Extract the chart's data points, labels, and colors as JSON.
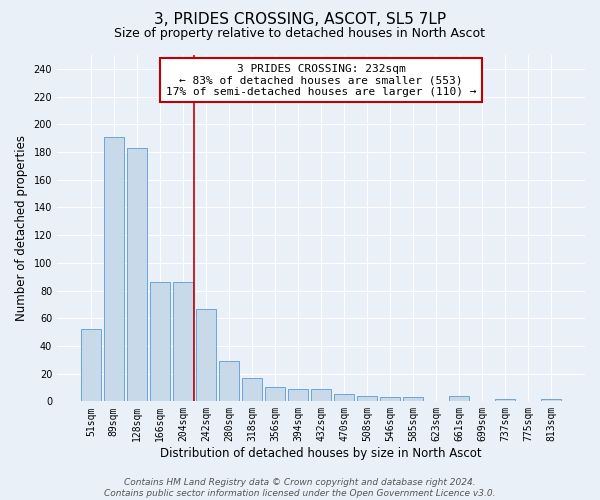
{
  "title": "3, PRIDES CROSSING, ASCOT, SL5 7LP",
  "subtitle": "Size of property relative to detached houses in North Ascot",
  "xlabel": "Distribution of detached houses by size in North Ascot",
  "ylabel": "Number of detached properties",
  "categories": [
    "51sqm",
    "89sqm",
    "128sqm",
    "166sqm",
    "204sqm",
    "242sqm",
    "280sqm",
    "318sqm",
    "356sqm",
    "394sqm",
    "432sqm",
    "470sqm",
    "508sqm",
    "546sqm",
    "585sqm",
    "623sqm",
    "661sqm",
    "699sqm",
    "737sqm",
    "775sqm",
    "813sqm"
  ],
  "values": [
    52,
    191,
    183,
    86,
    86,
    67,
    29,
    17,
    10,
    9,
    9,
    5,
    4,
    3,
    3,
    0,
    4,
    0,
    2,
    0,
    2
  ],
  "bar_color": "#c8d9ea",
  "bar_edge_color": "#5b9bd5",
  "vline_x_index": 5,
  "vline_color": "#c00000",
  "annotation_text": "3 PRIDES CROSSING: 232sqm\n← 83% of detached houses are smaller (553)\n17% of semi-detached houses are larger (110) →",
  "annotation_box_color": "white",
  "annotation_box_edge_color": "#c00000",
  "ylim": [
    0,
    250
  ],
  "yticks": [
    0,
    20,
    40,
    60,
    80,
    100,
    120,
    140,
    160,
    180,
    200,
    220,
    240
  ],
  "footer_text": "Contains HM Land Registry data © Crown copyright and database right 2024.\nContains public sector information licensed under the Open Government Licence v3.0.",
  "background_color": "#eaf0f8",
  "plot_bg_color": "#eaf0f8",
  "grid_color": "white",
  "title_fontsize": 11,
  "subtitle_fontsize": 9,
  "axis_label_fontsize": 8.5,
  "tick_fontsize": 7,
  "annotation_fontsize": 8,
  "footer_fontsize": 6.5
}
